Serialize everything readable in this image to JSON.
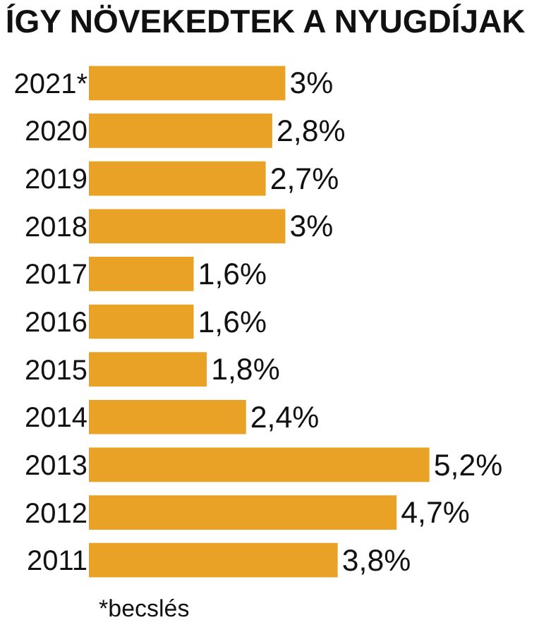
{
  "chart_data": {
    "type": "bar",
    "orientation": "horizontal",
    "title": "ÍGY NÖVEKEDTEK A NYUGDÍJAK",
    "categories": [
      "2021*",
      "2020",
      "2019",
      "2018",
      "2017",
      "2016",
      "2015",
      "2014",
      "2013",
      "2012",
      "2011"
    ],
    "values": [
      3,
      2.8,
      2.7,
      3,
      1.6,
      1.6,
      1.8,
      2.4,
      5.2,
      4.7,
      3.8
    ],
    "value_labels": [
      "3%",
      "2,8%",
      "2,7%",
      "3%",
      "1,6%",
      "1,6%",
      "1,8%",
      "2,4%",
      "5,2%",
      "4,7%",
      "3,8%"
    ],
    "color": "#e9a126",
    "annotations": [
      "*becslés"
    ]
  }
}
